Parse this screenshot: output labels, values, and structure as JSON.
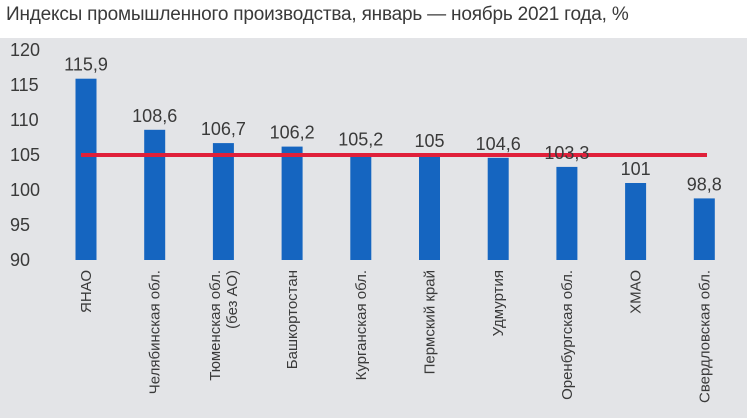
{
  "title": "Индексы промышленного производства, январь — ноябрь 2021 года, %",
  "chart_data": {
    "type": "bar",
    "categories": [
      "ЯНАО",
      "Челябинская обл.",
      "Тюменская обл. (без АО)",
      "Башкортостан",
      "Курганская обл.",
      "Пермский край",
      "Удмуртия",
      "Оренбургская обл.",
      "ХМАО",
      "Свердловская обл."
    ],
    "category_lines": [
      [
        "ЯНАО"
      ],
      [
        "Челябинская обл."
      ],
      [
        "Тюменская обл.",
        "(без АО)"
      ],
      [
        "Башкортостан"
      ],
      [
        "Курганская обл."
      ],
      [
        "Пермский край"
      ],
      [
        "Удмуртия"
      ],
      [
        "Оренбургская обл."
      ],
      [
        "ХМАО"
      ],
      [
        "Свердловская обл."
      ]
    ],
    "values": [
      115.9,
      108.6,
      106.7,
      106.2,
      105.2,
      105,
      104.6,
      103.3,
      101,
      98.8
    ],
    "value_labels": [
      "115,9",
      "108,6",
      "106,7",
      "106,2",
      "105,2",
      "105",
      "104,6",
      "103,3",
      "101",
      "98,8"
    ],
    "ylim": [
      90,
      120
    ],
    "yticks": [
      90,
      95,
      100,
      105,
      110,
      115,
      120
    ],
    "reference_line": 105,
    "grid": false,
    "colors": {
      "bar": "#1565c0",
      "reference_line": "#e0203a",
      "background": "#e3e4e7"
    }
  }
}
